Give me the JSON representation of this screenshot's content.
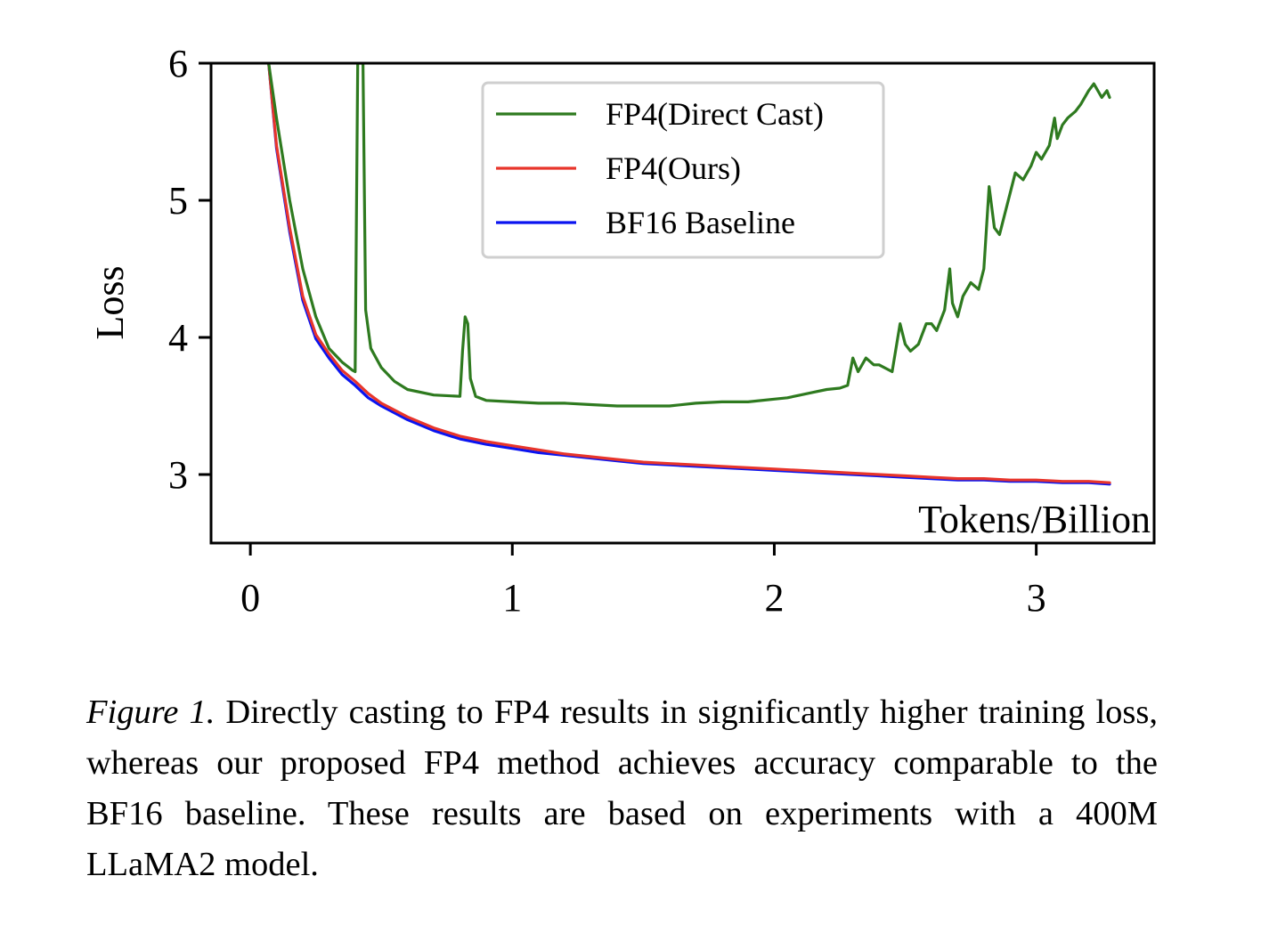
{
  "chart_data": {
    "type": "line",
    "title": "",
    "xlabel": "Tokens/Billion",
    "ylabel": "Loss",
    "xlim": [
      -0.15,
      3.45
    ],
    "ylim": [
      2.5,
      6.0
    ],
    "xticks": [
      0,
      1,
      2,
      3
    ],
    "xtick_labels": [
      "0",
      "1",
      "2",
      "3"
    ],
    "yticks": [
      3,
      4,
      5,
      6
    ],
    "ytick_labels": [
      "3",
      "4",
      "5",
      "6"
    ],
    "grid": false,
    "legend_position": "top-center",
    "series": [
      {
        "name": "FP4(Direct Cast)",
        "color": "#2e7a1f",
        "x": [
          0.07,
          0.1,
          0.15,
          0.2,
          0.25,
          0.3,
          0.35,
          0.39,
          0.4,
          0.41,
          0.42,
          0.43,
          0.44,
          0.46,
          0.5,
          0.55,
          0.6,
          0.7,
          0.8,
          0.81,
          0.82,
          0.83,
          0.84,
          0.86,
          0.9,
          1.0,
          1.1,
          1.2,
          1.3,
          1.4,
          1.5,
          1.6,
          1.7,
          1.8,
          1.9,
          2.0,
          2.05,
          2.1,
          2.15,
          2.2,
          2.25,
          2.28,
          2.3,
          2.32,
          2.35,
          2.38,
          2.4,
          2.45,
          2.48,
          2.5,
          2.52,
          2.55,
          2.58,
          2.6,
          2.62,
          2.65,
          2.67,
          2.68,
          2.69,
          2.7,
          2.72,
          2.75,
          2.78,
          2.8,
          2.82,
          2.84,
          2.86,
          2.88,
          2.9,
          2.92,
          2.95,
          2.98,
          3.0,
          3.02,
          3.05,
          3.07,
          3.08,
          3.1,
          3.12,
          3.15,
          3.17,
          3.2,
          3.22,
          3.25,
          3.27,
          3.28
        ],
        "y": [
          6.0,
          5.6,
          5.0,
          4.5,
          4.15,
          3.92,
          3.82,
          3.76,
          3.75,
          6.0,
          6.0,
          6.0,
          4.2,
          3.92,
          3.78,
          3.68,
          3.62,
          3.58,
          3.57,
          3.9,
          4.15,
          4.1,
          3.7,
          3.57,
          3.54,
          3.53,
          3.52,
          3.52,
          3.51,
          3.5,
          3.5,
          3.5,
          3.52,
          3.53,
          3.53,
          3.55,
          3.56,
          3.58,
          3.6,
          3.62,
          3.63,
          3.65,
          3.85,
          3.75,
          3.85,
          3.8,
          3.8,
          3.75,
          4.1,
          3.95,
          3.9,
          3.95,
          4.1,
          4.1,
          4.05,
          4.2,
          4.5,
          4.25,
          4.2,
          4.15,
          4.3,
          4.4,
          4.35,
          4.5,
          5.1,
          4.8,
          4.75,
          4.9,
          5.05,
          5.2,
          5.15,
          5.25,
          5.35,
          5.3,
          5.4,
          5.6,
          5.45,
          5.55,
          5.6,
          5.65,
          5.7,
          5.8,
          5.85,
          5.75,
          5.8,
          5.75
        ]
      },
      {
        "name": "FP4(Ours)",
        "color": "#e8352b",
        "x": [
          0.07,
          0.1,
          0.15,
          0.2,
          0.25,
          0.3,
          0.35,
          0.4,
          0.45,
          0.5,
          0.6,
          0.7,
          0.8,
          0.9,
          1.0,
          1.1,
          1.2,
          1.3,
          1.4,
          1.5,
          1.6,
          1.7,
          1.8,
          1.9,
          2.0,
          2.1,
          2.2,
          2.3,
          2.4,
          2.5,
          2.6,
          2.7,
          2.8,
          2.9,
          3.0,
          3.1,
          3.2,
          3.28
        ],
        "y": [
          6.0,
          5.4,
          4.8,
          4.3,
          4.02,
          3.88,
          3.76,
          3.68,
          3.59,
          3.52,
          3.42,
          3.34,
          3.28,
          3.24,
          3.21,
          3.18,
          3.15,
          3.13,
          3.11,
          3.09,
          3.08,
          3.07,
          3.06,
          3.05,
          3.04,
          3.03,
          3.02,
          3.01,
          3.0,
          2.99,
          2.98,
          2.97,
          2.97,
          2.96,
          2.96,
          2.95,
          2.95,
          2.94
        ]
      },
      {
        "name": "BF16 Baseline",
        "color": "#0a14f0",
        "x": [
          0.07,
          0.1,
          0.15,
          0.2,
          0.25,
          0.3,
          0.35,
          0.4,
          0.45,
          0.5,
          0.6,
          0.7,
          0.8,
          0.9,
          1.0,
          1.1,
          1.2,
          1.3,
          1.4,
          1.5,
          1.6,
          1.7,
          1.8,
          1.9,
          2.0,
          2.1,
          2.2,
          2.3,
          2.4,
          2.5,
          2.6,
          2.7,
          2.8,
          2.9,
          3.0,
          3.1,
          3.2,
          3.28
        ],
        "y": [
          6.0,
          5.38,
          4.77,
          4.27,
          3.99,
          3.85,
          3.73,
          3.65,
          3.56,
          3.5,
          3.4,
          3.32,
          3.26,
          3.22,
          3.19,
          3.16,
          3.14,
          3.12,
          3.1,
          3.08,
          3.07,
          3.06,
          3.05,
          3.04,
          3.03,
          3.02,
          3.01,
          3.0,
          2.99,
          2.98,
          2.97,
          2.96,
          2.96,
          2.95,
          2.95,
          2.94,
          2.94,
          2.93
        ]
      }
    ]
  },
  "caption": {
    "label": "Figure 1.",
    "text": "Directly casting to FP4 results in significantly higher training loss, whereas our proposed FP4 method achieves accuracy comparable to the BF16 baseline.  These results are based on experiments with a 400M LLaMA2 model."
  }
}
